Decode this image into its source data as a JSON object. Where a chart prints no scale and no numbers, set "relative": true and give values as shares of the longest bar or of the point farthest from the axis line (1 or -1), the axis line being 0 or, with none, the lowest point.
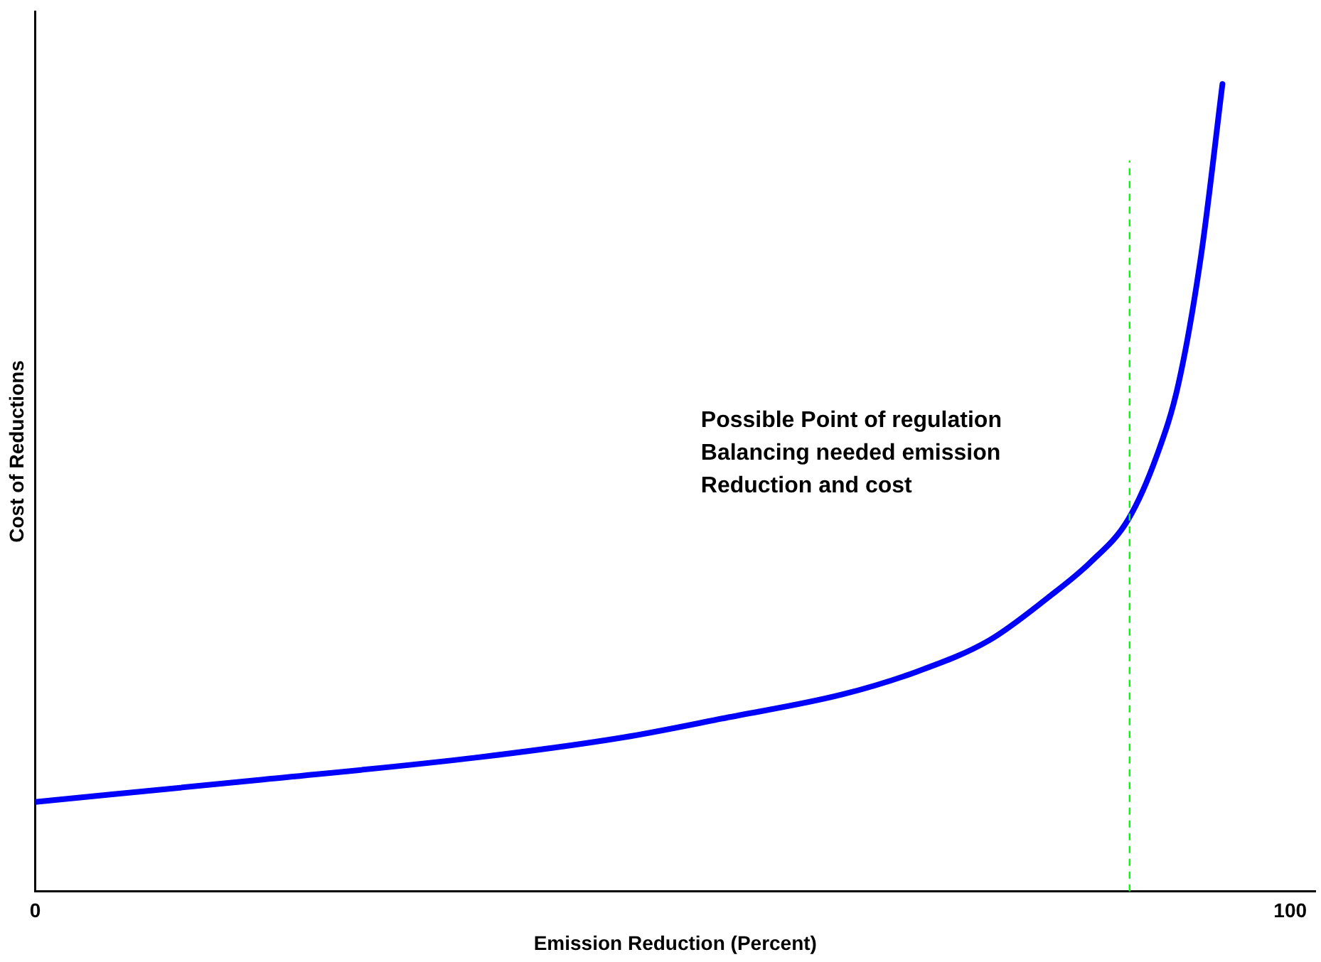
{
  "chart_data": {
    "type": "line",
    "xlabel": "Emission Reduction (Percent)",
    "ylabel": "Cost of Reductions",
    "relative": true,
    "xlim": [
      0,
      102
    ],
    "xticks": [
      0,
      100
    ],
    "grid": false,
    "legend": false,
    "marker": "none",
    "line_style": "solid",
    "x": [
      0,
      17.7,
      35.2,
      46.9,
      55,
      64.3,
      70.2,
      76,
      80.7,
      84.1,
      87.1,
      89.4,
      91.1,
      92.9,
      94.6
    ],
    "series": [
      {
        "color": "#0000ff",
        "values": [
          0.111,
          0.138,
          0.166,
          0.191,
          0.215,
          0.244,
          0.272,
          0.311,
          0.364,
          0.408,
          0.461,
          0.541,
          0.629,
          0.788,
          1
        ]
      }
    ],
    "ref_lines": [
      {
        "axis": "x",
        "value": 87.2,
        "color": "#00ff00",
        "line_style": "dashed"
      }
    ],
    "annotations": [
      "Possible Point of regulation\nBalancing needed emission\nReduction and cost"
    ]
  }
}
